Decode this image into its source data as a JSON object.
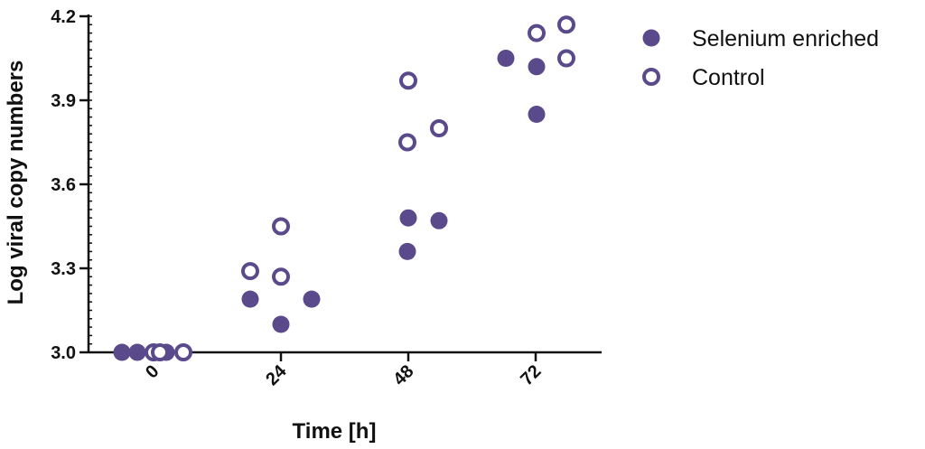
{
  "chart_data": {
    "type": "scatter",
    "xlabel": "Time [h]",
    "ylabel": "Log viral copy numbers",
    "categories": [
      "0",
      "24",
      "48",
      "72"
    ],
    "ylim": [
      3.0,
      4.2
    ],
    "yticks": [
      3.0,
      3.3,
      3.6,
      3.9,
      4.2
    ],
    "yticks_labels": [
      "3.0",
      "3.3",
      "3.6",
      "3.9",
      "4.2"
    ],
    "legend_position": "top-right",
    "series": [
      {
        "name": "Selenium enriched",
        "marker": "filled-circle",
        "color": "#5b4a8b",
        "points": [
          {
            "x": 0,
            "y": 3.0
          },
          {
            "x": 0,
            "y": 3.0
          },
          {
            "x": 0,
            "y": 3.0
          },
          {
            "x": 24,
            "y": 3.19
          },
          {
            "x": 24,
            "y": 3.1
          },
          {
            "x": 24,
            "y": 3.19
          },
          {
            "x": 48,
            "y": 3.48
          },
          {
            "x": 48,
            "y": 3.36
          },
          {
            "x": 48,
            "y": 3.47
          },
          {
            "x": 72,
            "y": 4.05
          },
          {
            "x": 72,
            "y": 4.02
          },
          {
            "x": 72,
            "y": 3.85
          }
        ]
      },
      {
        "name": "Control",
        "marker": "open-circle",
        "color": "#5b4a8b",
        "points": [
          {
            "x": 0,
            "y": 3.0
          },
          {
            "x": 0,
            "y": 3.0
          },
          {
            "x": 0,
            "y": 3.0
          },
          {
            "x": 24,
            "y": 3.29
          },
          {
            "x": 24,
            "y": 3.27
          },
          {
            "x": 24,
            "y": 3.45
          },
          {
            "x": 48,
            "y": 3.97
          },
          {
            "x": 48,
            "y": 3.75
          },
          {
            "x": 48,
            "y": 3.8
          },
          {
            "x": 72,
            "y": 4.14
          },
          {
            "x": 72,
            "y": 4.05
          },
          {
            "x": 72,
            "y": 4.17
          }
        ]
      }
    ]
  }
}
